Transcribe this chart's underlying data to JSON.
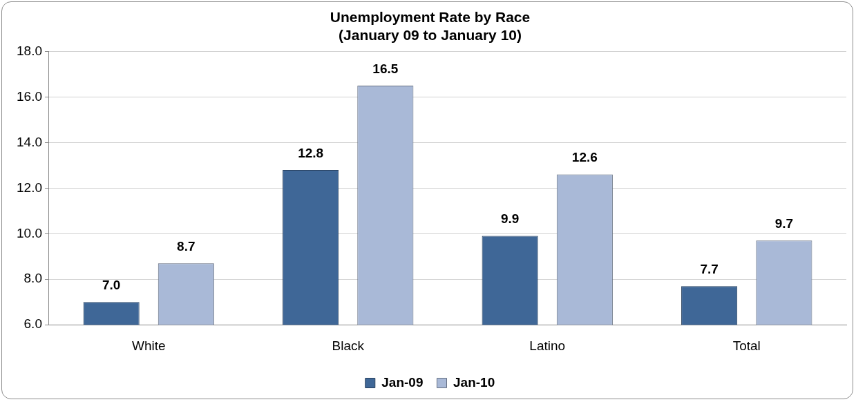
{
  "chart_data": {
    "type": "bar",
    "title": "Unemployment Rate by Race",
    "subtitle": "(January 09 to January 10)",
    "categories": [
      "White",
      "Black",
      "Latino",
      "Total"
    ],
    "series": [
      {
        "name": "Jan-09",
        "color": "#3f6797",
        "values": [
          7.0,
          12.8,
          9.9,
          7.7
        ],
        "value_labels": [
          "7.0",
          "12.8",
          "9.9",
          "7.7"
        ]
      },
      {
        "name": "Jan-10",
        "color": "#a9b9d7",
        "values": [
          8.7,
          16.5,
          12.6,
          9.7
        ],
        "value_labels": [
          "8.7",
          "16.5",
          "12.6",
          "9.7"
        ]
      }
    ],
    "ylim": [
      6,
      18
    ],
    "yticks": [
      {
        "value": 6,
        "label": "6.0"
      },
      {
        "value": 8,
        "label": "8.0"
      },
      {
        "value": 10,
        "label": "10.0"
      },
      {
        "value": 12,
        "label": "12.0"
      },
      {
        "value": 14,
        "label": "14.0"
      },
      {
        "value": 16,
        "label": "16.0"
      },
      {
        "value": 18,
        "label": "18.0"
      }
    ],
    "grid": "y",
    "legend": "bottom"
  }
}
